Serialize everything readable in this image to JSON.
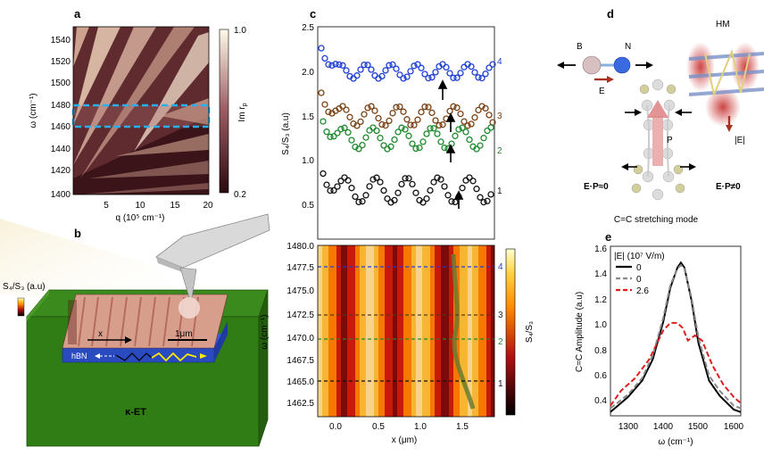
{
  "panel_a": {
    "label": "a",
    "ylabel": "ω (cm⁻¹)",
    "xlabel": "q (10⁵ cm⁻¹)",
    "yticks": [
      "1540",
      "1520",
      "1500",
      "1480",
      "1460",
      "1440",
      "1420",
      "1400"
    ],
    "xticks": [
      "5",
      "10",
      "15",
      "20"
    ],
    "cbar_label": "Im r",
    "cbar_sub": "p",
    "cbar_max": "1.0",
    "cbar_min": "0.2"
  },
  "panel_b": {
    "label": "b",
    "cbar_label": "S₄/S₃ (a.u)",
    "scale_label": "1μm",
    "x_label": "x",
    "hbn_label": "hBN",
    "substrate_label": "κ-ET"
  },
  "panel_c": {
    "label": "c",
    "top_ylabel": "S₄/S₃ (a.u)",
    "top_yticks": [
      "2.5",
      "2.0",
      "1.5",
      "1.0",
      "0.5"
    ],
    "bottom_ylabel": "ω (cm⁻¹)",
    "bottom_yticks": [
      "1480.0",
      "1477.5",
      "1475.0",
      "1472.5",
      "1470.0",
      "1467.5",
      "1465.0",
      "1462.5"
    ],
    "xticks": [
      "0.0",
      "0.5",
      "1.0",
      "1.5"
    ],
    "xlabel": "x (μm)",
    "cbar_label": "S₄/S₃",
    "trace_labels": [
      "4",
      "3",
      "2",
      "1"
    ],
    "line_labels": [
      "4",
      "3",
      "2",
      "1"
    ],
    "colors": {
      "4": "#1f3fd4",
      "3": "#7a4214",
      "2": "#1e8a2e",
      "1": "#111111"
    }
  },
  "panel_d": {
    "label": "d",
    "atom_b": "B",
    "atom_n": "N",
    "field_e": "E",
    "hm_label": "HM",
    "abs_e": "|E|",
    "p_label": "P",
    "left_cond": "E·P≈0",
    "right_cond": "E·P≠0",
    "mode_caption": "C=C stretching mode"
  },
  "panel_e": {
    "label": "e",
    "ylabel": "C=C Amplitude (a.u)",
    "xlabel": "ω (cm⁻¹)",
    "legend_title": "|E| (10⁷ V/m)",
    "legend_entries": [
      "0",
      "0",
      "2.6"
    ],
    "xticks": [
      "1300",
      "1400",
      "1500",
      "1600"
    ],
    "yticks": [
      "1.6",
      "1.4",
      "1.2",
      "1.0",
      "0.8",
      "0.6",
      "0.4"
    ]
  },
  "chart_data": [
    {
      "type": "line",
      "title": "e",
      "xlabel": "ω (cm⁻¹)",
      "ylabel": "C=C Amplitude (a.u)",
      "xlim": [
        1250,
        1620
      ],
      "ylim": [
        0.3,
        1.65
      ],
      "series": [
        {
          "name": "0",
          "style": "solid black",
          "x": [
            1250,
            1300,
            1340,
            1370,
            1400,
            1420,
            1440,
            1450,
            1460,
            1480,
            1500,
            1530,
            1560,
            1600,
            1620
          ],
          "y": [
            0.33,
            0.45,
            0.58,
            0.75,
            1.05,
            1.32,
            1.48,
            1.52,
            1.48,
            1.22,
            0.88,
            0.58,
            0.46,
            0.35,
            0.33
          ]
        },
        {
          "name": "0",
          "style": "dashed gray",
          "x": [
            1250,
            1300,
            1340,
            1370,
            1400,
            1420,
            1440,
            1450,
            1460,
            1480,
            1500,
            1530,
            1560,
            1600,
            1620
          ],
          "y": [
            0.36,
            0.47,
            0.6,
            0.78,
            1.08,
            1.34,
            1.47,
            1.5,
            1.47,
            1.24,
            0.92,
            0.62,
            0.5,
            0.38,
            0.36
          ]
        },
        {
          "name": "2.6",
          "style": "dashed red",
          "x": [
            1250,
            1280,
            1320,
            1360,
            1400,
            1420,
            1440,
            1455,
            1470,
            1490,
            1510,
            1540,
            1570,
            1600,
            1620
          ],
          "y": [
            0.38,
            0.5,
            0.6,
            0.75,
            0.98,
            1.04,
            1.04,
            1.0,
            0.9,
            0.94,
            0.9,
            0.7,
            0.55,
            0.45,
            0.4
          ]
        }
      ]
    }
  ]
}
